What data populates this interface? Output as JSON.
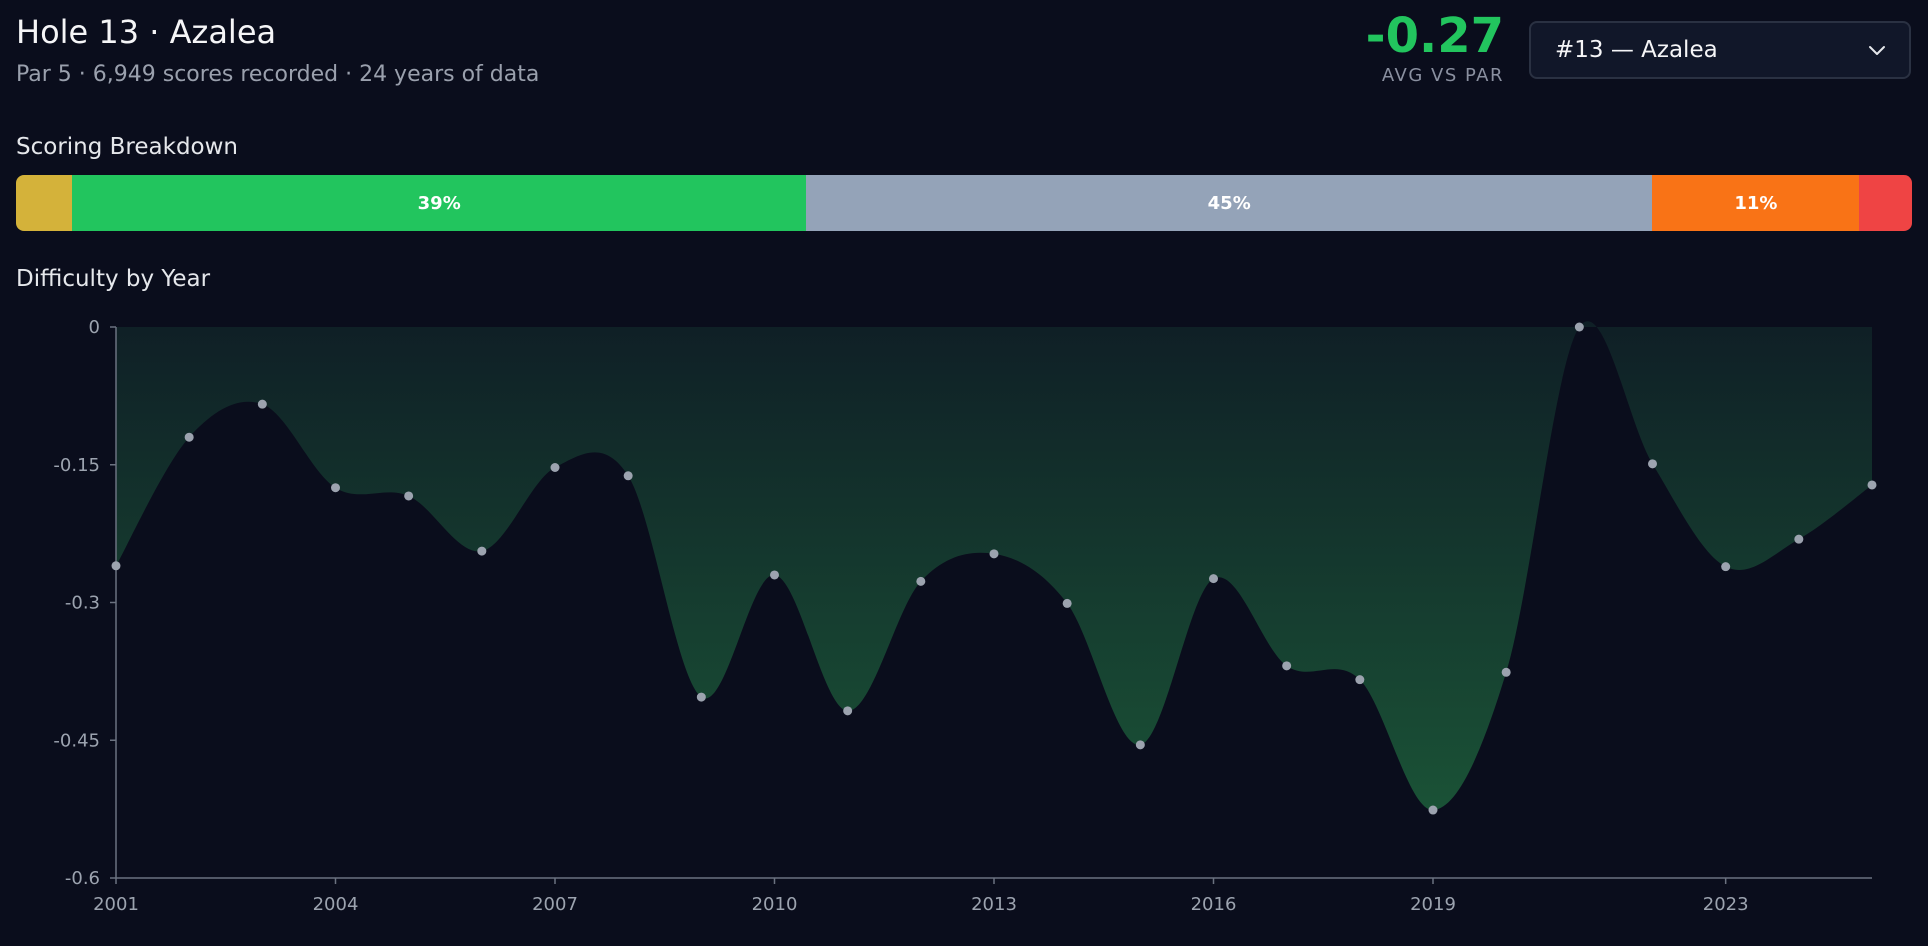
{
  "header": {
    "title": "Hole 13 · Azalea",
    "subtitle": "Par 5 · 6,949 scores recorded · 24 years of data"
  },
  "stat": {
    "value": "-0.27",
    "label": "AVG VS PAR"
  },
  "hole_select": {
    "value": "#13 — Azalea"
  },
  "breakdown": {
    "title": "Scoring Breakdown",
    "segments": [
      {
        "share": 3,
        "label": "",
        "color": "#d4b23a"
      },
      {
        "share": 39,
        "label": "39%",
        "color": "#22c55e"
      },
      {
        "share": 45,
        "label": "45%",
        "color": "#94a3b8"
      },
      {
        "share": 11,
        "label": "11%",
        "color": "#f97316"
      },
      {
        "share": 2.8,
        "label": "",
        "color": "#ef4444"
      }
    ]
  },
  "chart_section": {
    "title": "Difficulty by Year"
  },
  "chart_data": {
    "type": "area",
    "title": "Difficulty by Year",
    "xlabel": "",
    "ylabel": "",
    "x": [
      2001,
      2002,
      2003,
      2004,
      2005,
      2006,
      2007,
      2008,
      2009,
      2010,
      2011,
      2012,
      2013,
      2014,
      2015,
      2016,
      2017,
      2018,
      2019,
      2020,
      2021,
      2022,
      2023,
      2024,
      2025
    ],
    "y": [
      -0.26,
      -0.12,
      -0.084,
      -0.175,
      -0.184,
      -0.244,
      -0.153,
      -0.162,
      -0.403,
      -0.27,
      -0.418,
      -0.277,
      -0.247,
      -0.301,
      -0.455,
      -0.274,
      -0.369,
      -0.384,
      -0.526,
      -0.376,
      0,
      -0.149,
      -0.261,
      -0.231,
      -0.172
    ],
    "xlim": [
      2001,
      2025
    ],
    "ylim": [
      -0.6,
      0
    ],
    "xticks": [
      "2001",
      "2004",
      "2007",
      "2010",
      "2013",
      "2016",
      "2019",
      "2023"
    ],
    "yticks": [
      "0",
      "-0.15",
      "-0.3",
      "-0.45",
      "-0.6"
    ],
    "colors": {
      "area_top": "#0f1f26",
      "area_bottom": "#1a5236",
      "marker": "#9ca3af",
      "axis": "#6b7280"
    }
  }
}
